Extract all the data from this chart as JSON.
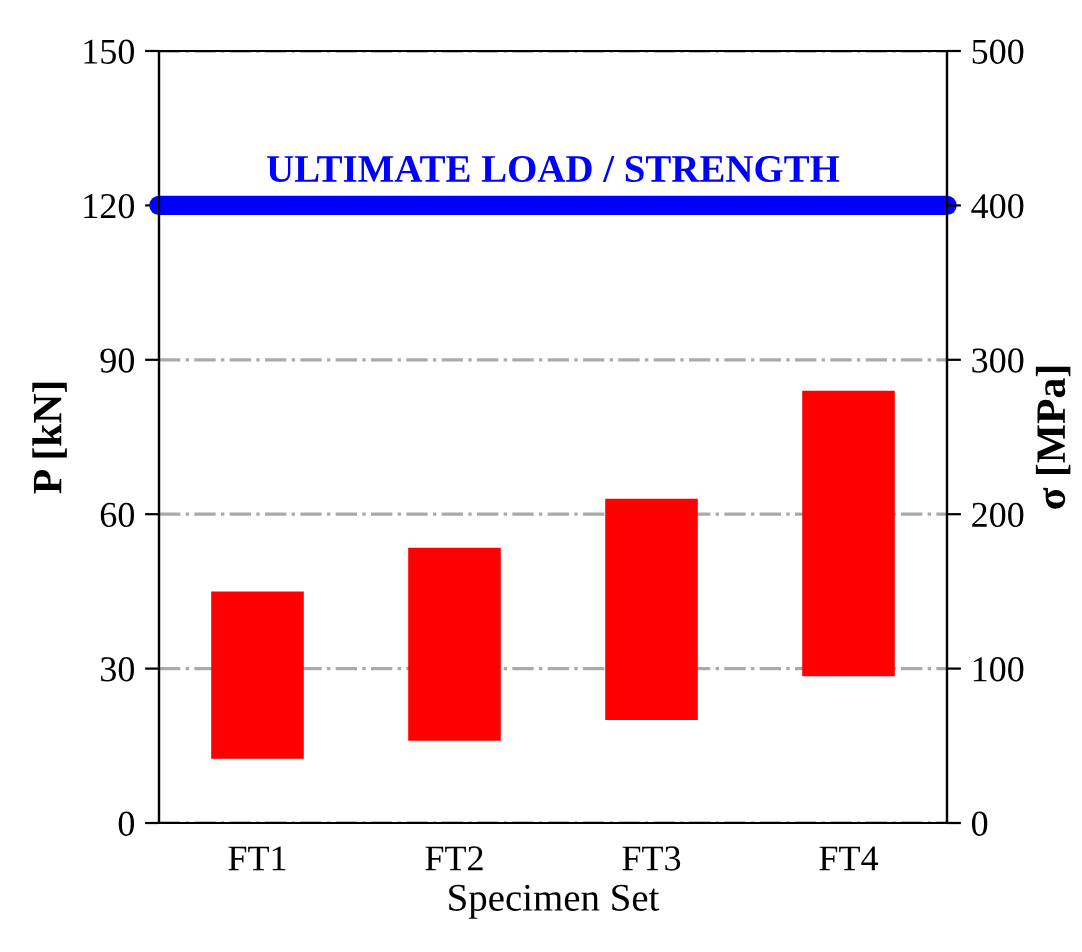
{
  "chart_data": {
    "type": "bar",
    "xlabel": "Specimen Set",
    "ylabel": "P [kN]",
    "y2label": "σ [MPa]",
    "categories": [
      "FT1",
      "FT2",
      "FT3",
      "FT4"
    ],
    "base": [
      12.5,
      16,
      20,
      28.5
    ],
    "values": [
      32.5,
      37.5,
      43,
      55.5
    ],
    "color": "#ff0000",
    "ylim": [
      0,
      150
    ],
    "yticks": [
      0,
      30,
      60,
      90,
      120,
      150
    ],
    "y2lim": [
      0,
      500
    ],
    "y2ticks": [
      0,
      100,
      200,
      300,
      400,
      500
    ],
    "grid": "y",
    "ref_lines": [
      {
        "axis": "y",
        "value": 120,
        "label": "ULTIMATE LOAD / STRENGTH",
        "color": "#0000ff",
        "line_style": "solid"
      }
    ]
  }
}
